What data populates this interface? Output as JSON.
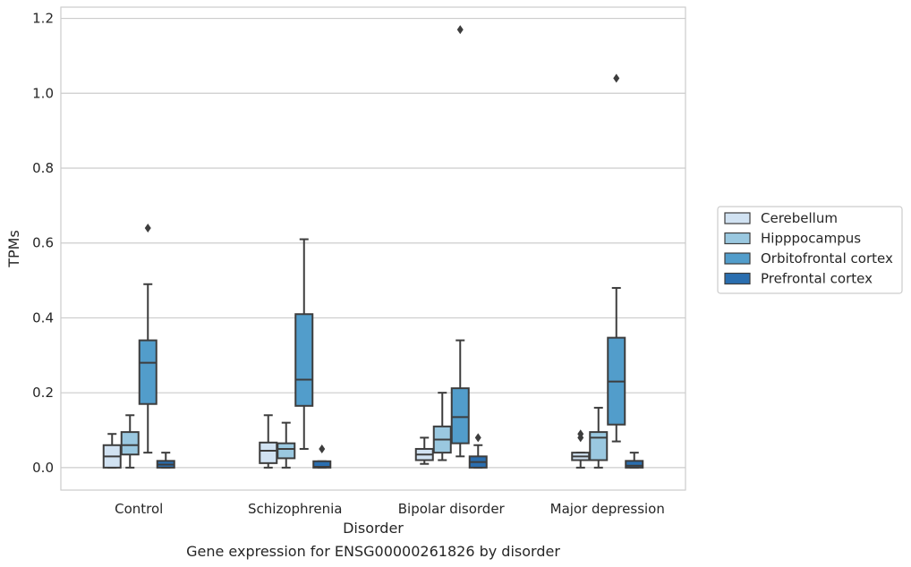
{
  "chart_data": {
    "type": "box",
    "xlabel": "Disorder",
    "ylabel": "TPMs",
    "caption": "Gene expression for ENSG00000261826 by disorder",
    "ylim": [
      -0.06,
      1.23
    ],
    "y_ticks": [
      "0.0",
      "0.2",
      "0.4",
      "0.6",
      "0.8",
      "1.0",
      "1.2"
    ],
    "y_tick_values": [
      0.0,
      0.2,
      0.4,
      0.6,
      0.8,
      1.0,
      1.2
    ],
    "grid": "horizontal",
    "legend_position": "right",
    "categories": [
      "Control",
      "Schizophrenia",
      "Bipolar disorder",
      "Major depression"
    ],
    "series": [
      {
        "name": "Cerebellum",
        "color": "#d1e2f2",
        "boxes": [
          {
            "whislo": 0.0,
            "q1": 0.0,
            "med": 0.03,
            "q3": 0.06,
            "whishi": 0.09,
            "fliers": []
          },
          {
            "whislo": 0.0,
            "q1": 0.012,
            "med": 0.045,
            "q3": 0.067,
            "whishi": 0.14,
            "fliers": []
          },
          {
            "whislo": 0.01,
            "q1": 0.02,
            "med": 0.035,
            "q3": 0.05,
            "whishi": 0.08,
            "fliers": []
          },
          {
            "whislo": 0.0,
            "q1": 0.02,
            "med": 0.03,
            "q3": 0.04,
            "whishi": 0.04,
            "fliers": [
              0.08,
              0.09
            ]
          }
        ]
      },
      {
        "name": "Hipppocampus",
        "color": "#9ac8e0",
        "boxes": [
          {
            "whislo": 0.0,
            "q1": 0.035,
            "med": 0.06,
            "q3": 0.095,
            "whishi": 0.14,
            "fliers": []
          },
          {
            "whislo": 0.0,
            "q1": 0.025,
            "med": 0.05,
            "q3": 0.065,
            "whishi": 0.12,
            "fliers": []
          },
          {
            "whislo": 0.02,
            "q1": 0.04,
            "med": 0.075,
            "q3": 0.11,
            "whishi": 0.2,
            "fliers": []
          },
          {
            "whislo": 0.0,
            "q1": 0.02,
            "med": 0.08,
            "q3": 0.095,
            "whishi": 0.16,
            "fliers": []
          }
        ]
      },
      {
        "name": "Orbitofrontal cortex",
        "color": "#529dcb",
        "boxes": [
          {
            "whislo": 0.04,
            "q1": 0.17,
            "med": 0.28,
            "q3": 0.34,
            "whishi": 0.49,
            "fliers": [
              0.64
            ]
          },
          {
            "whislo": 0.05,
            "q1": 0.165,
            "med": 0.235,
            "q3": 0.41,
            "whishi": 0.61,
            "fliers": []
          },
          {
            "whislo": 0.03,
            "q1": 0.065,
            "med": 0.135,
            "q3": 0.212,
            "whishi": 0.34,
            "fliers": [
              1.17
            ]
          },
          {
            "whislo": 0.07,
            "q1": 0.115,
            "med": 0.23,
            "q3": 0.347,
            "whishi": 0.48,
            "fliers": [
              1.04
            ]
          }
        ]
      },
      {
        "name": "Prefrontal cortex",
        "color": "#2a6eaf",
        "boxes": [
          {
            "whislo": 0.0,
            "q1": 0.0,
            "med": 0.008,
            "q3": 0.018,
            "whishi": 0.04,
            "fliers": []
          },
          {
            "whislo": 0.0,
            "q1": 0.0,
            "med": 0.002,
            "q3": 0.017,
            "whishi": 0.017,
            "fliers": [
              0.05
            ]
          },
          {
            "whislo": 0.0,
            "q1": 0.0,
            "med": 0.015,
            "q3": 0.03,
            "whishi": 0.06,
            "fliers": [
              0.08
            ]
          },
          {
            "whislo": 0.0,
            "q1": 0.0,
            "med": 0.005,
            "q3": 0.018,
            "whishi": 0.04,
            "fliers": []
          }
        ]
      }
    ]
  }
}
